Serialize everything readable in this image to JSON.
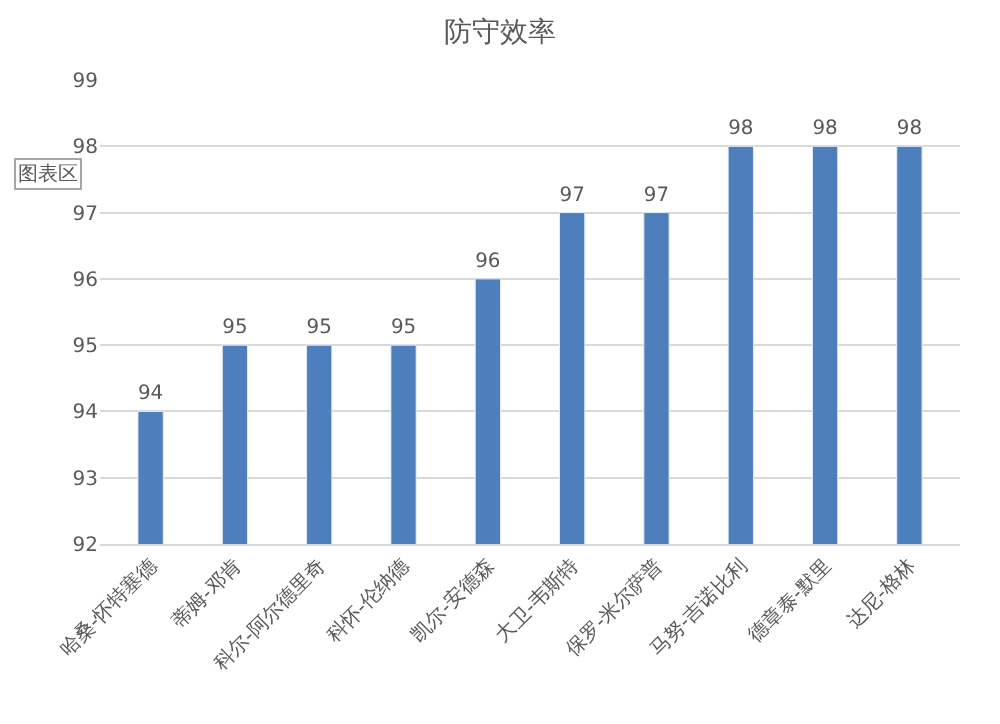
{
  "chart_data": {
    "type": "bar",
    "title": "防守效率",
    "categories": [
      "哈桑-怀特塞德",
      "蒂姆-邓肯",
      "科尔-阿尔德里奇",
      "科怀-伦纳德",
      "凯尔-安德森",
      "大卫-韦斯特",
      "保罗-米尔萨普",
      "马努-吉诺比利",
      "德章泰-默里",
      "达尼-格林"
    ],
    "values": [
      94,
      95,
      95,
      95,
      96,
      97,
      97,
      98,
      98,
      98
    ],
    "color": "#4e7fbd",
    "ylim": [
      92,
      99
    ],
    "yticks": [
      92,
      93,
      94,
      95,
      96,
      97,
      98,
      99
    ],
    "grid": "y",
    "data_labels": true,
    "legend": false,
    "annotations": [
      "图表区"
    ]
  }
}
